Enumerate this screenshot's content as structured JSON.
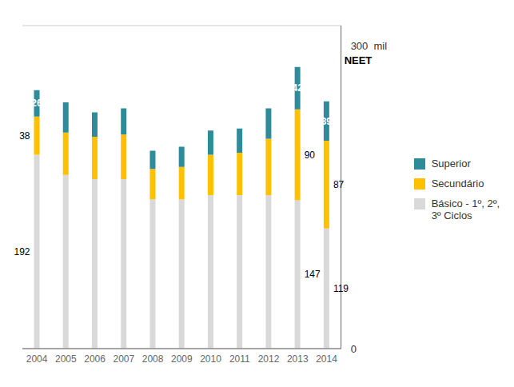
{
  "chart_data": {
    "type": "bar",
    "stacked": true,
    "categories": [
      "2004",
      "2005",
      "2006",
      "2007",
      "2008",
      "2009",
      "2010",
      "2011",
      "2012",
      "2013",
      "2014"
    ],
    "series": [
      {
        "name": "Básico - 1º, 2º,\n3º Ciclos",
        "color": "#d9d9d9",
        "values": [
          192,
          172,
          168,
          168,
          148,
          148,
          152,
          152,
          152,
          147,
          119
        ],
        "value_labels": [
          "192",
          null,
          null,
          null,
          null,
          null,
          null,
          null,
          null,
          "147",
          "119"
        ]
      },
      {
        "name": "Secundário",
        "color": "#ffc000",
        "values": [
          38,
          42,
          42,
          44,
          30,
          32,
          40,
          42,
          56,
          90,
          87
        ],
        "value_labels": [
          "38",
          null,
          null,
          null,
          null,
          null,
          null,
          null,
          null,
          "90",
          "87"
        ]
      },
      {
        "name": "Superior",
        "color": "#2e8b9a",
        "values": [
          26,
          30,
          24,
          26,
          18,
          20,
          24,
          24,
          30,
          42,
          39
        ],
        "value_labels": [
          "26",
          null,
          null,
          null,
          null,
          null,
          null,
          null,
          null,
          "42",
          "39"
        ]
      }
    ],
    "ylim": [
      0,
      320
    ],
    "yticks": [
      0,
      {
        "value": 300,
        "label": "300  mil"
      }
    ],
    "grid": true,
    "legend": "right",
    "annotations": [
      {
        "text": "NEET",
        "y": 300
      }
    ]
  }
}
